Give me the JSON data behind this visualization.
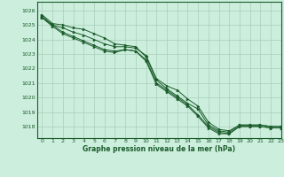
{
  "title": "Graphe pression niveau de la mer (hPa)",
  "bg_color": "#cceedd",
  "grid_color": "#aaccbb",
  "line_color": "#1a5c2a",
  "marker_color": "#1a5c2a",
  "xlim": [
    -0.5,
    23
  ],
  "ylim": [
    1017.2,
    1026.6
  ],
  "yticks": [
    1018,
    1019,
    1020,
    1021,
    1022,
    1023,
    1024,
    1025,
    1026
  ],
  "xticks": [
    0,
    1,
    2,
    3,
    4,
    5,
    6,
    7,
    8,
    9,
    10,
    11,
    12,
    13,
    14,
    15,
    16,
    17,
    18,
    19,
    20,
    21,
    22,
    23
  ],
  "series": [
    [
      1025.7,
      1025.1,
      1025.0,
      1024.8,
      1024.7,
      1024.4,
      1024.1,
      1023.7,
      1023.6,
      1023.5,
      1022.8,
      1021.2,
      1020.6,
      1020.1,
      1019.6,
      1019.2,
      1018.1,
      1017.7,
      1017.6,
      1018.1,
      1018.1,
      1018.1,
      1018.0,
      1018.0
    ],
    [
      1025.5,
      1025.0,
      1024.8,
      1024.5,
      1024.3,
      1024.0,
      1023.7,
      1023.5,
      1023.5,
      1023.4,
      1022.9,
      1021.3,
      1020.8,
      1020.5,
      1019.9,
      1019.4,
      1018.3,
      1017.8,
      1017.7,
      1018.1,
      1018.1,
      1018.1,
      1018.0,
      1018.0
    ],
    [
      1025.6,
      1025.0,
      1024.5,
      1024.2,
      1023.9,
      1023.6,
      1023.3,
      1023.2,
      1023.3,
      1023.2,
      1022.6,
      1021.0,
      1020.5,
      1020.0,
      1019.5,
      1018.8,
      1018.0,
      1017.6,
      1017.5,
      1018.0,
      1018.0,
      1018.0,
      1017.9,
      1017.9
    ],
    [
      1025.5,
      1024.9,
      1024.4,
      1024.1,
      1023.8,
      1023.5,
      1023.2,
      1023.1,
      1023.3,
      1023.2,
      1022.5,
      1020.9,
      1020.4,
      1019.9,
      1019.4,
      1018.7,
      1017.9,
      1017.5,
      1017.5,
      1018.0,
      1018.0,
      1018.0,
      1017.9,
      1017.9
    ]
  ]
}
